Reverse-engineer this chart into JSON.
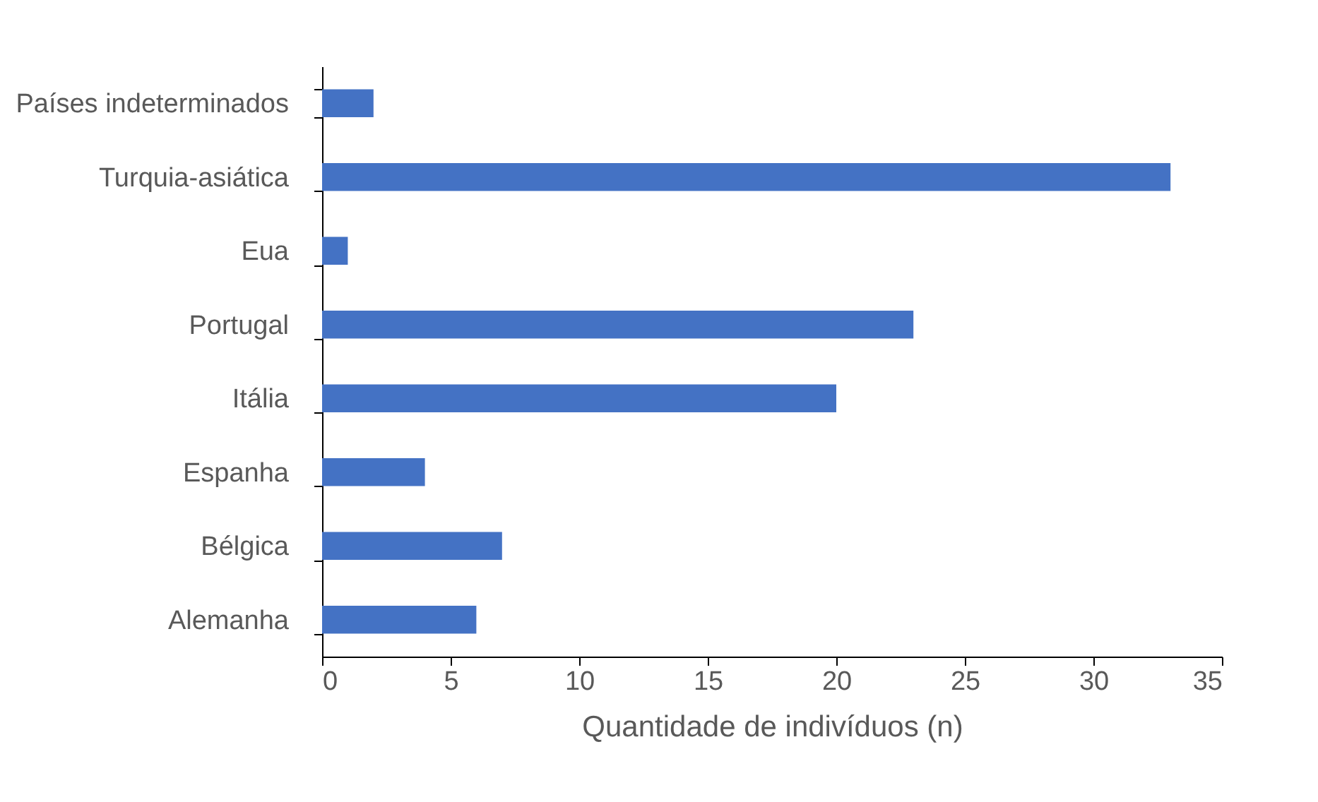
{
  "chart_data": {
    "type": "bar",
    "orientation": "horizontal",
    "xlabel": "Quantidade de indivíduos (n)",
    "categories": [
      "Países indeterminados",
      "Turquia-asiática",
      "Eua",
      "Portugal",
      "Itália",
      "Espanha",
      "Bélgica",
      "Alemanha"
    ],
    "values": [
      2,
      33,
      1,
      23,
      20,
      4,
      7,
      6
    ],
    "color": "#4472c4",
    "xlim": [
      0,
      35
    ],
    "xticks": [
      0,
      5,
      10,
      15,
      20,
      25,
      30,
      35
    ],
    "grid": false
  }
}
